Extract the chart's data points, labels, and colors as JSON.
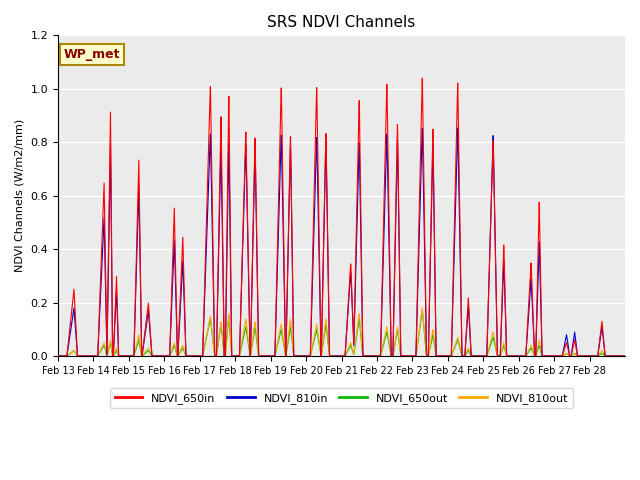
{
  "title": "SRS NDVI Channels",
  "ylabel": "NDVI Channels (W/m2/mm)",
  "xlabel": "",
  "annotation": "WP_met",
  "ylim": [
    0,
    1.2
  ],
  "colors": {
    "NDVI_650in": "#FF0000",
    "NDVI_810in": "#0000CC",
    "NDVI_650out": "#00BB00",
    "NDVI_810out": "#FFAA00"
  },
  "background_color": "#EBEBEB",
  "legend_labels": [
    "NDVI_650in",
    "NDVI_810in",
    "NDVI_650out",
    "NDVI_810out"
  ],
  "annotation_bg": "#FFFFCC",
  "annotation_border": "#AA8800",
  "annotation_text_color": "#880000",
  "xtick_labels": [
    "Feb 13",
    "Feb 14",
    "Feb 15",
    "Feb 16",
    "Feb 17",
    "Feb 18",
    "Feb 19",
    "Feb 20",
    "Feb 21",
    "Feb 22",
    "Feb 23",
    "Feb 24",
    "Feb 25",
    "Feb 26",
    "Feb 27",
    "Feb 28"
  ],
  "ytick_values": [
    0.0,
    0.2,
    0.4,
    0.6,
    0.8,
    1.0,
    1.2
  ],
  "spike_params": [
    [
      0.45,
      0.2,
      0.1,
      0.25,
      0.18,
      0.02,
      0.02
    ],
    [
      1.3,
      0.18,
      0.08,
      0.65,
      0.52,
      0.04,
      0.05
    ],
    [
      1.48,
      0.1,
      0.06,
      0.92,
      0.8,
      0.05,
      0.06
    ],
    [
      1.65,
      0.09,
      0.06,
      0.3,
      0.25,
      0.02,
      0.03
    ],
    [
      2.28,
      0.14,
      0.08,
      0.74,
      0.64,
      0.06,
      0.08
    ],
    [
      2.55,
      0.18,
      0.1,
      0.2,
      0.17,
      0.02,
      0.03
    ],
    [
      3.28,
      0.13,
      0.09,
      0.56,
      0.44,
      0.04,
      0.05
    ],
    [
      3.52,
      0.14,
      0.09,
      0.45,
      0.36,
      0.03,
      0.04
    ],
    [
      4.3,
      0.22,
      0.12,
      1.02,
      0.84,
      0.14,
      0.15
    ],
    [
      4.6,
      0.13,
      0.09,
      0.91,
      0.79,
      0.12,
      0.13
    ],
    [
      4.82,
      0.1,
      0.08,
      0.99,
      0.81,
      0.15,
      0.16
    ],
    [
      5.3,
      0.18,
      0.12,
      0.85,
      0.8,
      0.11,
      0.14
    ],
    [
      5.56,
      0.13,
      0.1,
      0.83,
      0.79,
      0.11,
      0.13
    ],
    [
      6.3,
      0.18,
      0.12,
      1.02,
      0.84,
      0.1,
      0.12
    ],
    [
      6.56,
      0.13,
      0.09,
      0.84,
      0.8,
      0.11,
      0.14
    ],
    [
      7.3,
      0.18,
      0.12,
      1.02,
      0.83,
      0.1,
      0.12
    ],
    [
      7.56,
      0.13,
      0.1,
      0.85,
      0.82,
      0.12,
      0.14
    ],
    [
      8.26,
      0.16,
      0.1,
      0.35,
      0.32,
      0.04,
      0.05
    ],
    [
      8.5,
      0.16,
      0.1,
      0.97,
      0.81,
      0.14,
      0.16
    ],
    [
      9.28,
      0.18,
      0.12,
      1.03,
      0.84,
      0.09,
      0.11
    ],
    [
      9.58,
      0.13,
      0.09,
      0.88,
      0.82,
      0.1,
      0.11
    ],
    [
      10.28,
      0.18,
      0.12,
      1.05,
      0.86,
      0.17,
      0.18
    ],
    [
      10.58,
      0.13,
      0.09,
      0.86,
      0.8,
      0.08,
      0.1
    ],
    [
      11.28,
      0.18,
      0.12,
      1.03,
      0.86,
      0.06,
      0.07
    ],
    [
      11.58,
      0.1,
      0.08,
      0.22,
      0.19,
      0.02,
      0.03
    ],
    [
      12.28,
      0.18,
      0.12,
      0.81,
      0.83,
      0.07,
      0.09
    ],
    [
      12.58,
      0.1,
      0.08,
      0.42,
      0.36,
      0.04,
      0.05
    ],
    [
      13.35,
      0.15,
      0.1,
      0.35,
      0.29,
      0.03,
      0.04
    ],
    [
      13.58,
      0.1,
      0.08,
      0.58,
      0.43,
      0.04,
      0.06
    ],
    [
      14.35,
      0.12,
      0.09,
      0.05,
      0.08,
      0.01,
      0.01
    ],
    [
      14.58,
      0.1,
      0.08,
      0.06,
      0.09,
      0.01,
      0.01
    ],
    [
      15.35,
      0.12,
      0.09,
      0.13,
      0.11,
      0.01,
      0.02
    ]
  ]
}
